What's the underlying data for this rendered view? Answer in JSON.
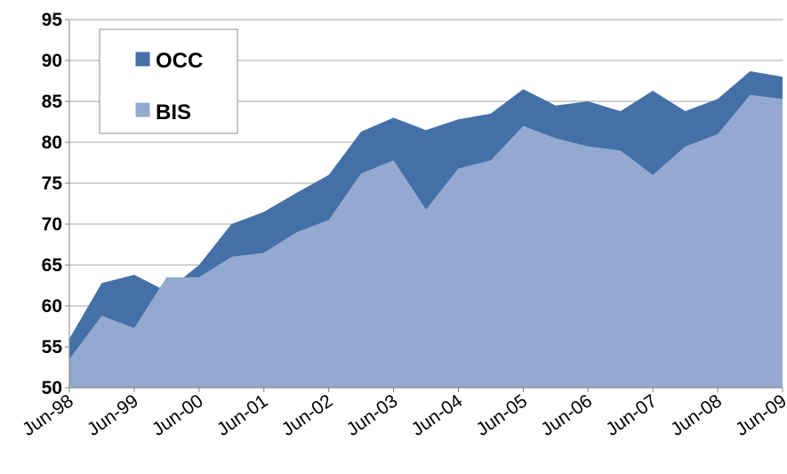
{
  "chart_data": {
    "type": "area",
    "stacked": false,
    "x": [
      "Jun-98",
      "Dec-98",
      "Jun-99",
      "Dec-99",
      "Jun-00",
      "Dec-00",
      "Jun-01",
      "Dec-01",
      "Jun-02",
      "Dec-02",
      "Jun-03",
      "Dec-03",
      "Jun-04",
      "Dec-04",
      "Jun-05",
      "Dec-05",
      "Jun-06",
      "Dec-06",
      "Jun-07",
      "Dec-07",
      "Jun-08",
      "Dec-08",
      "Jun-09"
    ],
    "xtick_labels": [
      "Jun-98",
      "Jun-99",
      "Jun-00",
      "Jun-01",
      "Jun-02",
      "Jun-03",
      "Jun-04",
      "Jun-05",
      "Jun-06",
      "Jun-07",
      "Jun-08",
      "Jun-09"
    ],
    "series": [
      {
        "name": "OCC",
        "color": "#4470a8",
        "values": [
          56,
          62.8,
          63.8,
          61.8,
          65,
          70,
          71.5,
          73.8,
          76,
          81.3,
          83,
          81.5,
          82.8,
          83.5,
          86.5,
          84.5,
          85,
          83.8,
          86.3,
          83.8,
          85.3,
          88.7,
          88
        ]
      },
      {
        "name": "BIS",
        "color": "#94a9d0",
        "values": [
          53.5,
          58.8,
          57.3,
          63.5,
          63.5,
          66,
          66.5,
          69,
          70.5,
          76.2,
          77.8,
          71.8,
          76.8,
          77.8,
          82,
          80.5,
          79.5,
          79,
          76,
          79.5,
          81,
          85.8,
          85.3
        ]
      }
    ],
    "yticks": [
      50,
      55,
      60,
      65,
      70,
      75,
      80,
      85,
      90,
      95
    ],
    "ylim": [
      50,
      95
    ],
    "grid": true,
    "legend_position": "top-left",
    "title": "",
    "xlabel": "",
    "ylabel": ""
  }
}
